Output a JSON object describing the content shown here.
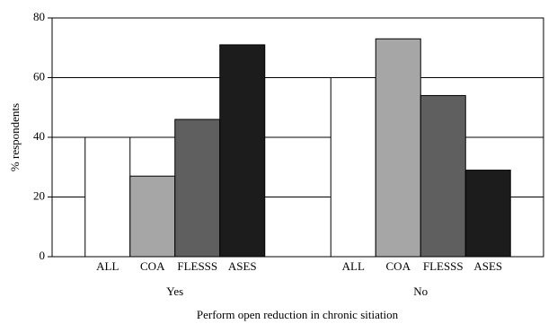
{
  "chart_data": {
    "type": "grouped_bar",
    "xlabel": "Perform open reduction in chronic sitiation",
    "ylabel": "% respondents",
    "categories": [
      "Yes",
      "No"
    ],
    "series": [
      {
        "name": "ALL",
        "color": "#ffffff",
        "values": [
          40,
          60
        ]
      },
      {
        "name": "COA",
        "color": "#a6a6a6",
        "values": [
          27,
          73
        ]
      },
      {
        "name": "FLESSS",
        "color": "#5f5f5f",
        "values": [
          46,
          54
        ]
      },
      {
        "name": "ASES",
        "color": "#1c1c1c",
        "values": [
          71,
          29
        ]
      }
    ],
    "ylim": [
      0,
      80
    ],
    "yticks": [
      0,
      20,
      40,
      60,
      80
    ],
    "grid": true
  }
}
